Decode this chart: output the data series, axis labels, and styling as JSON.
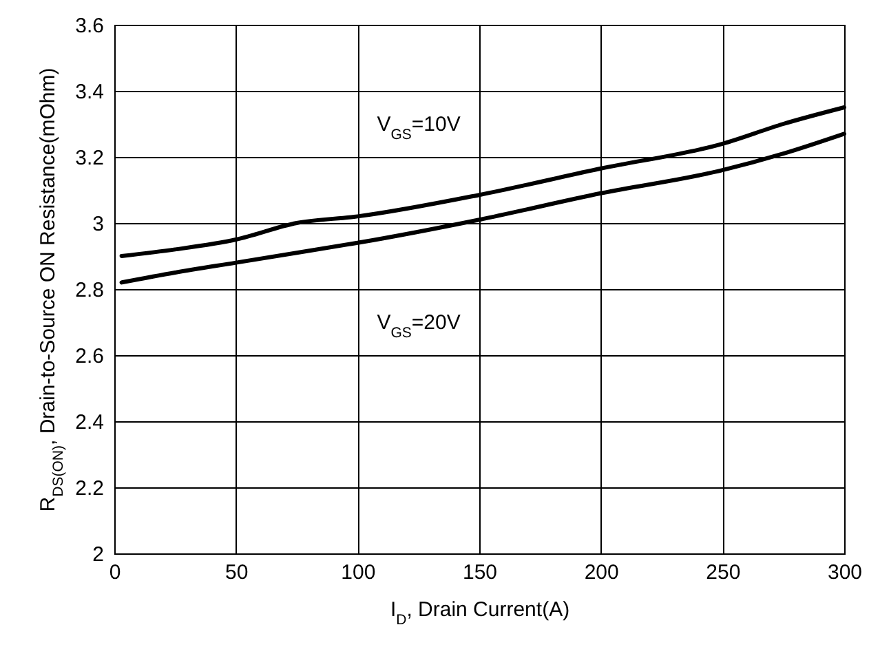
{
  "chart_data": {
    "type": "line",
    "xlabel": "I$_{D}$, Drain Current(A)",
    "ylabel": "R$_{DS(ON)}$, Drain-to-Source ON Resistance(mOhm)",
    "x": [
      3,
      25,
      50,
      75,
      100,
      150,
      200,
      250,
      275,
      300
    ],
    "series": [
      {
        "color": "#000000",
        "values": [
          2.9,
          2.92,
          2.95,
          3.0,
          3.02,
          3.085,
          3.165,
          3.24,
          3.3,
          3.35
        ]
      },
      {
        "color": "#000000",
        "values": [
          2.82,
          2.85,
          2.88,
          2.91,
          2.94,
          3.01,
          3.09,
          3.16,
          3.21,
          3.27
        ]
      }
    ],
    "xlim": [
      0,
      300
    ],
    "xticks": [
      0,
      50,
      100,
      150,
      200,
      250,
      300
    ],
    "ylim": [
      2,
      3.6
    ],
    "yticks": [
      2,
      2.2,
      2.4,
      2.6,
      2.8,
      3,
      3.2,
      3.4,
      3.6
    ],
    "grid": true,
    "line_style": "solid",
    "marker": "none",
    "annotations": [
      "V$_{GS}$=10V",
      "V$_{GS}$=20V"
    ]
  }
}
